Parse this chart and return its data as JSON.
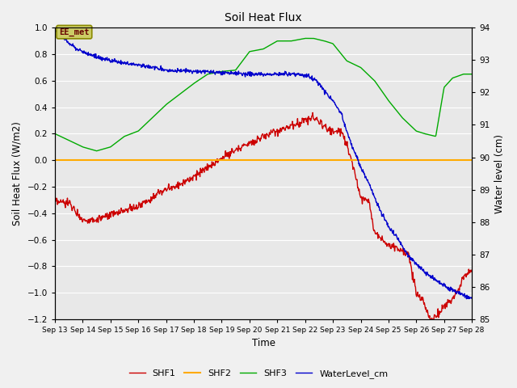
{
  "title": "Soil Heat Flux",
  "xlabel": "Time",
  "ylabel_left": "Soil Heat Flux (W/m2)",
  "ylabel_right": "Water level (cm)",
  "ylim_left": [
    -1.2,
    1.0
  ],
  "ylim_right": [
    85.0,
    94.0
  ],
  "yticks_left": [
    -1.2,
    -1.0,
    -0.8,
    -0.6,
    -0.4,
    -0.2,
    0.0,
    0.2,
    0.4,
    0.6,
    0.8,
    1.0
  ],
  "yticks_right": [
    85.0,
    86.0,
    87.0,
    88.0,
    89.0,
    90.0,
    91.0,
    92.0,
    93.0,
    94.0
  ],
  "xtick_labels": [
    "Sep 13",
    "Sep 14",
    "Sep 15",
    "Sep 16",
    "Sep 17",
    "Sep 18",
    "Sep 19",
    "Sep 20",
    "Sep 21",
    "Sep 22",
    "Sep 23",
    "Sep 24",
    "Sep 25",
    "Sep 26",
    "Sep 27",
    "Sep 28"
  ],
  "bg_color": "#f0f0f0",
  "plot_bg_color": "#e8e8e8",
  "grid_color": "#ffffff",
  "shf1_color": "#cc0000",
  "shf2_color": "#ffaa00",
  "shf3_color": "#00aa00",
  "water_color": "#0000cc",
  "annotation_text": "EE_met",
  "annotation_box_facecolor": "#cccc66",
  "annotation_box_edgecolor": "#888800",
  "annotation_text_color": "#660000",
  "legend_labels": [
    "SHF1",
    "SHF2",
    "SHF3",
    "WaterLevel_cm"
  ]
}
